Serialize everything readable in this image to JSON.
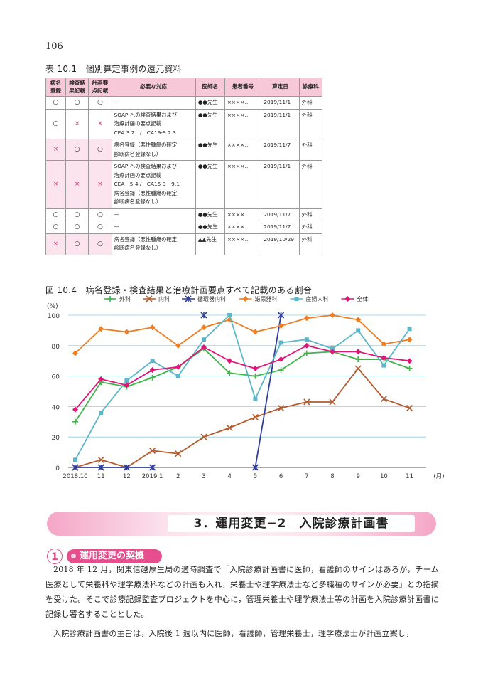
{
  "page_number": "106",
  "table_caption": "表 10.1　個別算定事例の還元資料",
  "table": {
    "headers": [
      "病名\n登録",
      "検査結\n果記載",
      "計画要\n点記載",
      "必要な対応",
      "医師名",
      "患者番号",
      "算定日",
      "診療科"
    ],
    "rows": [
      {
        "c1": "○",
        "c2": "○",
        "c3": "○",
        "action": "—",
        "doctor": "●●先生",
        "patient": "××××…",
        "date": "2019/11/1",
        "dept": "外科"
      },
      {
        "c1": "○",
        "c2": "×",
        "c3": "×",
        "action": "SOAP への検査結果および\n治療計画の要点記載\nCEA 3.2　/　CA19-9 2.3",
        "doctor": "●●先生",
        "patient": "××××…",
        "date": "2019/11/1",
        "dept": "外科"
      },
      {
        "c1": "×",
        "c2": "○",
        "c3": "○",
        "action": "病名登録（悪性腫瘍の確定\n診断病名登録なし）",
        "doctor": "●●先生",
        "patient": "××××…",
        "date": "2019/11/7",
        "dept": "外科"
      },
      {
        "c1": "×",
        "c2": "×",
        "c3": "×",
        "action": "SOAP への検査結果および\n治療計画の要点記載\nCEA　5.4 /　CA15-3　9.1\n病名登録（悪性腫瘍の確定\n診断病名登録なし）",
        "doctor": "●●先生",
        "patient": "××××…",
        "date": "2019/11/1",
        "dept": "外科"
      },
      {
        "c1": "○",
        "c2": "○",
        "c3": "○",
        "action": "—",
        "doctor": "●●先生",
        "patient": "××××…",
        "date": "2019/11/7",
        "dept": "外科"
      },
      {
        "c1": "○",
        "c2": "○",
        "c3": "○",
        "action": "—",
        "doctor": "●●先生",
        "patient": "××××…",
        "date": "2019/11/7",
        "dept": "外科"
      },
      {
        "c1": "×",
        "c2": "○",
        "c3": "○",
        "action": "病名登録（悪性腫瘍の確定\n診断病名登録なし）",
        "doctor": "▲▲先生",
        "patient": "××××…",
        "date": "2019/10/29",
        "dept": "外科"
      }
    ]
  },
  "figure_caption": "図 10.4　病名登録・検査結果と治療計画要点すべて記載のある割合",
  "chart_data": {
    "type": "line",
    "ylabel": "(%)",
    "xunit": "(月)",
    "ylim": [
      0,
      100
    ],
    "yticks": [
      "0",
      "20",
      "40",
      "60",
      "80",
      "100"
    ],
    "categories": [
      "2018.10",
      "11",
      "12",
      "2019.1",
      "2",
      "3",
      "4",
      "5",
      "6",
      "7",
      "8",
      "9",
      "10",
      "11"
    ],
    "grid": true,
    "legend_position": "top",
    "series": [
      {
        "name": "外科",
        "color": "#3fb54a",
        "marker": "plus",
        "values": [
          30,
          56,
          53,
          59,
          66,
          78,
          62,
          60,
          64,
          75,
          76,
          71,
          71,
          65
        ]
      },
      {
        "name": "内科",
        "color": "#b35a2e",
        "marker": "x",
        "values": [
          0,
          5,
          0,
          11,
          9,
          20,
          26,
          33,
          39,
          43,
          43,
          65,
          45,
          39
        ]
      },
      {
        "name": "循環器内科",
        "color": "#2e3e9c",
        "marker": "asterisk",
        "values": [
          0,
          0,
          0,
          0,
          null,
          100,
          null,
          0,
          100,
          null,
          null,
          null,
          null,
          null
        ]
      },
      {
        "name": "泌尿器科",
        "color": "#ef7d22",
        "marker": "diamond",
        "values": [
          75,
          91,
          89,
          92,
          80,
          92,
          97,
          89,
          93,
          98,
          100,
          97,
          81,
          84
        ]
      },
      {
        "name": "産婦人科",
        "color": "#5cb6c9",
        "marker": "square",
        "values": [
          5,
          36,
          57,
          70,
          60,
          84,
          100,
          45,
          82,
          84,
          78,
          90,
          67,
          91
        ]
      },
      {
        "name": "全体",
        "color": "#e0177a",
        "marker": "diamond",
        "values": [
          38,
          58,
          54,
          64,
          66,
          79,
          70,
          65,
          71,
          80,
          76,
          76,
          72,
          70
        ]
      }
    ]
  },
  "banner_title": "3．運用変更−2　入院診療計画書",
  "section_number": "1",
  "section_title": "運用変更の契機",
  "paragraphs": [
    "2018 年 12 月，関東信越厚生局の適時調査で「入院診療計画書に医師，看護師のサインはあるが，チーム医療として栄養科や理学療法科などの計画も入れ，栄養士や理学療法士など多職種のサインが必要」との指摘を受けた。そこで診療記録監査プロジェクトを中心に，管理栄養士や理学療法士等の計画を入院診療計画書に記録し署名することとした。",
    "入院診療計画書の主旨は，入院後 1 週以内に医師，看護師，管理栄養士，理学療法士が計画立案し，"
  ]
}
